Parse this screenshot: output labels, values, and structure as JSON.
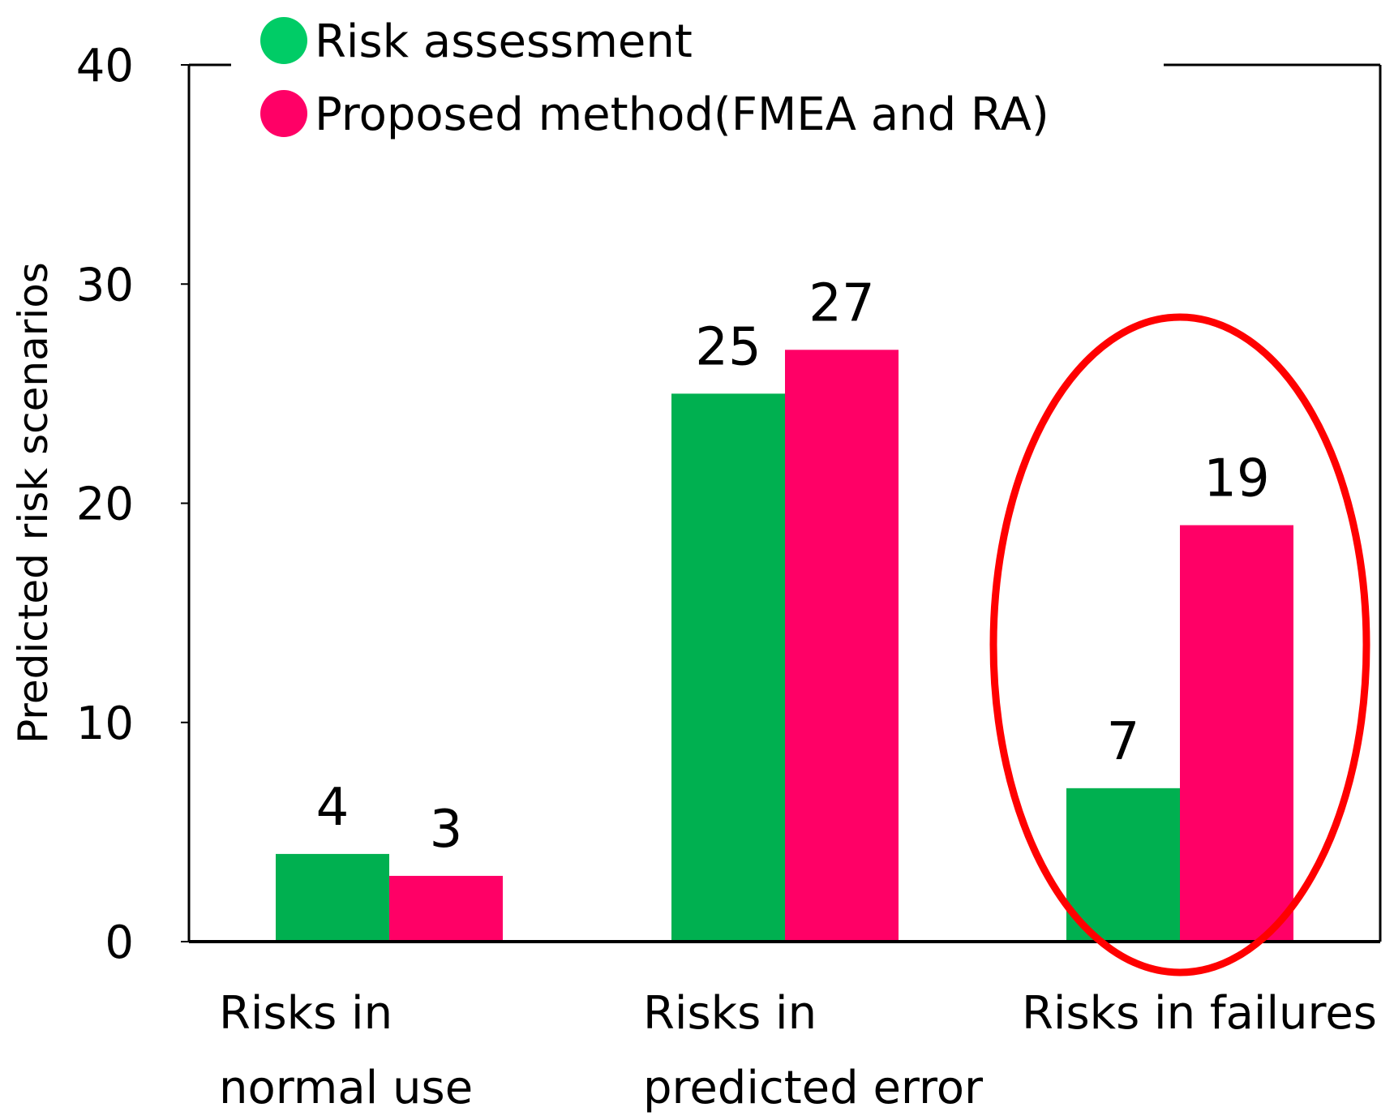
{
  "chart_data": {
    "type": "bar",
    "title": "",
    "xlabel": "",
    "ylabel": "Predicted risk scenarios",
    "ylim": [
      0,
      40
    ],
    "yticks": [
      0,
      10,
      20,
      30,
      40
    ],
    "grid": false,
    "legend_position": "top",
    "categories": [
      [
        "Risks in",
        "normal use"
      ],
      [
        "Risks in",
        "predicted error"
      ],
      [
        "Risks in failures"
      ]
    ],
    "series": [
      {
        "name": "Risk assessment",
        "color": "#00B050",
        "legend_color": "#00CC66",
        "values": [
          4,
          25,
          7
        ]
      },
      {
        "name": "Proposed method(FMEA and RA)",
        "color": "#FF0066",
        "legend_color": "#FF0066",
        "values": [
          3,
          27,
          19
        ]
      }
    ],
    "annotation": {
      "type": "ellipse",
      "color": "#FF0000",
      "target_category": 2
    }
  }
}
